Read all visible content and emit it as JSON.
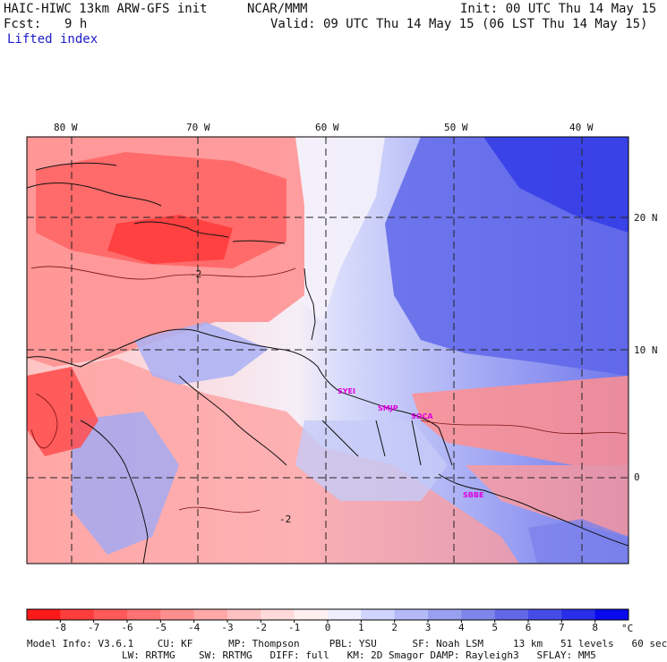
{
  "header": {
    "model": "HAIC-HIWC 13km ARW-GFS init",
    "org": "NCAR/MMM",
    "init": "Init: 00 UTC Thu 14 May 15",
    "fcst_label": "Fcst:",
    "fcst_value": "9 h",
    "valid": "Valid: 09 UTC Thu 14 May 15 (06 LST Thu 14 May 15)",
    "field": "Lifted index"
  },
  "map": {
    "lon_labels": [
      "80 W",
      "70 W",
      "60 W",
      "50 W",
      "40 W"
    ],
    "lat_labels": [
      "20 N",
      "10 N",
      "0"
    ],
    "contour_labels": [
      "-2",
      "-2"
    ],
    "stations": [
      "SYEI",
      "SMJP",
      "SOCA",
      "SBBE"
    ]
  },
  "colorbar": {
    "ticks": [
      "-8",
      "-7",
      "-6",
      "-5",
      "-4",
      "-3",
      "-2",
      "-1",
      "0",
      "1",
      "2",
      "3",
      "4",
      "5",
      "6",
      "7",
      "8"
    ],
    "unit": "°C",
    "colors": [
      "#ff1a1a",
      "#ff3d3d",
      "#ff5959",
      "#ff7373",
      "#ff8f8f",
      "#ffa8a8",
      "#ffc2c2",
      "#ffdada",
      "#fff0f0",
      "#eeeeff",
      "#d0d4ff",
      "#b4baf7",
      "#9aa0f0",
      "#7f86ea",
      "#6369e6",
      "#454ce6",
      "#2a2ee8",
      "#0a0aee"
    ]
  },
  "footer": {
    "line1": "Model Info: V3.6.1    CU: KF      MP: Thompson     PBL: YSU      SF: Noah LSM     13 km   51 levels   60 sec",
    "line2": "                LW: RRTMG    SW: RRTMG   DIFF: full   KM: 2D Smagor DAMP: Rayleigh3   SFLAY: MM5"
  }
}
